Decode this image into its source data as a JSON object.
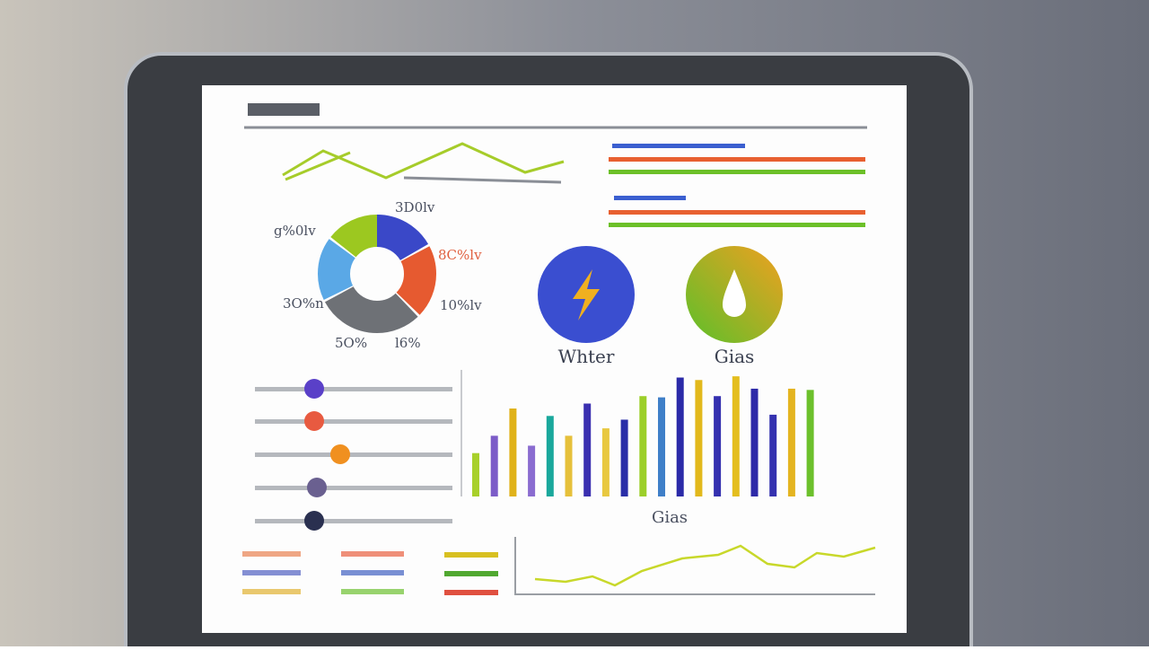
{
  "donut": {
    "labels": [
      "3D0lv",
      "g%0lv",
      "8C%lv",
      "3O%n",
      "10%lv",
      "5O%",
      "l6%"
    ]
  },
  "icons": {
    "left_label": "Whter",
    "right_label": "Gias"
  },
  "bar_chart": {
    "label": "Gias",
    "values": [
      35,
      49,
      71,
      41,
      65,
      49,
      75,
      55,
      62,
      81,
      80,
      96,
      94,
      81,
      97,
      87,
      66,
      87,
      86
    ],
    "colors": [
      "#a8d02a",
      "#7c5cc8",
      "#e0b21a",
      "#8a6cd0",
      "#1aa89c",
      "#e6c03a",
      "#3a2fb0",
      "#e8c840",
      "#2a2ea8",
      "#9ccf2a",
      "#3f7fc8",
      "#2b2aa8",
      "#e2b81c",
      "#3430b0",
      "#e4be1e",
      "#2e2aa8",
      "#3532b0",
      "#e4b420",
      "#6cc02c"
    ],
    "ylim": [
      0,
      100
    ]
  }
}
